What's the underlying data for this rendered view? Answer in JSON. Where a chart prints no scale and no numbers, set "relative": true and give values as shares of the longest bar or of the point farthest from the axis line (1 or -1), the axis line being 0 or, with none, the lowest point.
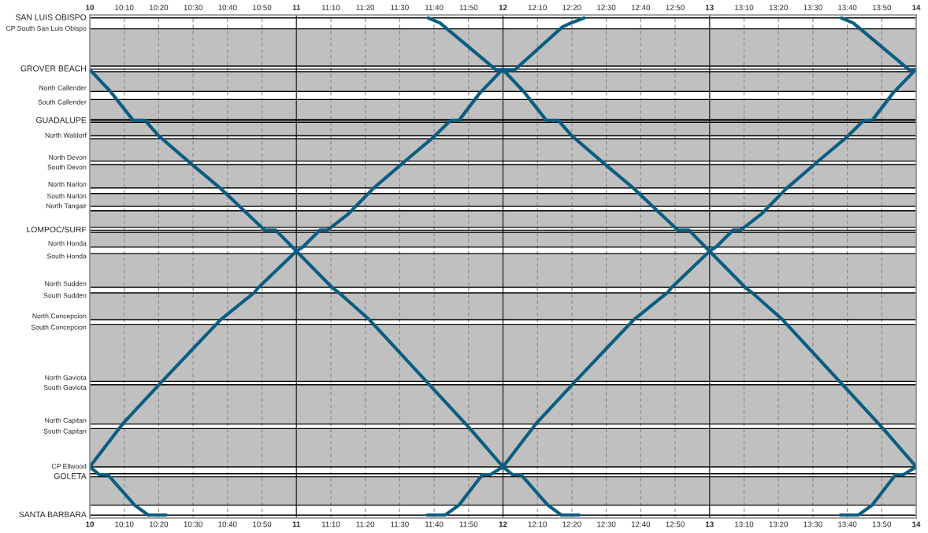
{
  "chart_data": {
    "type": "line",
    "line_style": "solid",
    "grid": "x",
    "relative": true,
    "xlim": [
      10,
      14
    ],
    "x2lim": [
      10,
      14
    ],
    "xticks": [
      10,
      {
        "value": 10.1667,
        "label": "10:10"
      },
      {
        "value": 10.3333,
        "label": "10:20"
      },
      {
        "value": 10.5,
        "label": "10:30"
      },
      {
        "value": 10.6667,
        "label": "10:40"
      },
      {
        "value": 10.8333,
        "label": "10:50"
      },
      11,
      {
        "value": 11.1667,
        "label": "11:10"
      },
      {
        "value": 11.3333,
        "label": "11:20"
      },
      {
        "value": 11.5,
        "label": "11:30"
      },
      {
        "value": 11.6667,
        "label": "11:40"
      },
      {
        "value": 11.8333,
        "label": "11:50"
      },
      12,
      {
        "value": 12.1667,
        "label": "12:10"
      },
      {
        "value": 12.3333,
        "label": "12:20"
      },
      {
        "value": 12.5,
        "label": "12:30"
      },
      {
        "value": 12.6667,
        "label": "12:40"
      },
      {
        "value": 12.8333,
        "label": "12:50"
      },
      13,
      {
        "value": 13.1667,
        "label": "13:10"
      },
      {
        "value": 13.3333,
        "label": "13:20"
      },
      {
        "value": 13.5,
        "label": "13:30"
      },
      {
        "value": 13.6667,
        "label": "13:40"
      },
      {
        "value": 13.8333,
        "label": "13:50"
      },
      14
    ],
    "x2ticks": [
      10,
      {
        "value": 10.1667,
        "label": "10:10"
      },
      {
        "value": 10.3333,
        "label": "10:20"
      },
      {
        "value": 10.5,
        "label": "10:30"
      },
      {
        "value": 10.6667,
        "label": "10:40"
      },
      {
        "value": 10.8333,
        "label": "10:50"
      },
      11,
      {
        "value": 11.1667,
        "label": "11:10"
      },
      {
        "value": 11.3333,
        "label": "11:20"
      },
      {
        "value": 11.5,
        "label": "11:30"
      },
      {
        "value": 11.6667,
        "label": "11:40"
      },
      {
        "value": 11.8333,
        "label": "11:50"
      },
      12,
      {
        "value": 12.1667,
        "label": "12:10"
      },
      {
        "value": 12.3333,
        "label": "12:20"
      },
      {
        "value": 12.5,
        "label": "12:30"
      },
      {
        "value": 12.6667,
        "label": "12:40"
      },
      {
        "value": 12.8333,
        "label": "12:50"
      },
      13,
      {
        "value": 13.1667,
        "label": "13:10"
      },
      {
        "value": 13.3333,
        "label": "13:20"
      },
      {
        "value": 13.5,
        "label": "13:30"
      },
      {
        "value": 13.6667,
        "label": "13:40"
      },
      {
        "value": 13.8333,
        "label": "13:50"
      },
      14
    ],
    "bands": [
      {
        "axis": "y",
        "from": 0.978,
        "to": 0.903,
        "color": "#c0c0c0"
      },
      {
        "axis": "y",
        "from": 0.892,
        "to": 0.852,
        "color": "#c0c0c0"
      },
      {
        "axis": "y",
        "from": 0.836,
        "to": 0.796,
        "color": "#c0c0c0"
      },
      {
        "axis": "y",
        "from": 0.79,
        "to": 0.763,
        "color": "#c0c0c0"
      },
      {
        "axis": "y",
        "from": 0.757,
        "to": 0.712,
        "color": "#c0c0c0"
      },
      {
        "axis": "y",
        "from": 0.705,
        "to": 0.658,
        "color": "#c0c0c0"
      },
      {
        "axis": "y",
        "from": 0.647,
        "to": 0.621,
        "color": "#c0c0c0"
      },
      {
        "axis": "y",
        "from": 0.612,
        "to": 0.579,
        "color": "#c0c0c0"
      },
      {
        "axis": "y",
        "from": 0.569,
        "to": 0.539,
        "color": "#c0c0c0"
      },
      {
        "axis": "y",
        "from": 0.526,
        "to": 0.458,
        "color": "#c0c0c0"
      },
      {
        "axis": "y",
        "from": 0.447,
        "to": 0.393,
        "color": "#c0c0c0"
      },
      {
        "axis": "y",
        "from": 0.383,
        "to": 0.269,
        "color": "#c0c0c0"
      },
      {
        "axis": "y",
        "from": 0.262,
        "to": 0.183,
        "color": "#c0c0c0"
      },
      {
        "axis": "y",
        "from": 0.174,
        "to": 0.097,
        "color": "#c0c0c0"
      },
      {
        "axis": "y",
        "from": 0.077,
        "to": 0.02,
        "color": "#c0c0c0"
      }
    ],
    "ref_lines": [
      {
        "axis": "y",
        "value": 1.0,
        "color": "#000000",
        "label": "SAN LUIS OBISPO"
      },
      {
        "axis": "y",
        "value": 0.978,
        "color": "#000000",
        "label": "CP South San Luis Obispo"
      },
      {
        "axis": "y",
        "value": 0.903,
        "color": "#000000"
      },
      {
        "axis": "y",
        "value": 0.897,
        "color": "#000000",
        "label": "GROVER BEACH"
      },
      {
        "axis": "y",
        "value": 0.892,
        "color": "#000000"
      },
      {
        "axis": "y",
        "value": 0.852,
        "color": "#000000",
        "label": "North Callender"
      },
      {
        "axis": "y",
        "value": 0.836,
        "color": "#000000",
        "label": "South Callender"
      },
      {
        "axis": "y",
        "value": 0.796,
        "color": "#000000"
      },
      {
        "axis": "y",
        "value": 0.793,
        "color": "#000000",
        "label": "GUADALUPE"
      },
      {
        "axis": "y",
        "value": 0.79,
        "color": "#000000"
      },
      {
        "axis": "y",
        "value": 0.763,
        "color": "#000000",
        "label": "North Waldorf"
      },
      {
        "axis": "y",
        "value": 0.757,
        "color": "#000000"
      },
      {
        "axis": "y",
        "value": 0.712,
        "color": "#000000",
        "label": "North Devon"
      },
      {
        "axis": "y",
        "value": 0.705,
        "color": "#000000",
        "label": "South Devon"
      },
      {
        "axis": "y",
        "value": 0.658,
        "color": "#000000",
        "label": "North Narlon"
      },
      {
        "axis": "y",
        "value": 0.647,
        "color": "#000000",
        "label": "South Narlon"
      },
      {
        "axis": "y",
        "value": 0.621,
        "color": "#000000",
        "label": "North Tangair"
      },
      {
        "axis": "y",
        "value": 0.612,
        "color": "#000000"
      },
      {
        "axis": "y",
        "value": 0.579,
        "color": "#000000"
      },
      {
        "axis": "y",
        "value": 0.573,
        "color": "#000000",
        "label": "LOMPOC/SURF"
      },
      {
        "axis": "y",
        "value": 0.569,
        "color": "#000000"
      },
      {
        "axis": "y",
        "value": 0.539,
        "color": "#000000",
        "label": "North Honda"
      },
      {
        "axis": "y",
        "value": 0.526,
        "color": "#000000",
        "label": "South Honda"
      },
      {
        "axis": "y",
        "value": 0.458,
        "color": "#000000",
        "label": "North Sudden"
      },
      {
        "axis": "y",
        "value": 0.447,
        "color": "#000000",
        "label": "South Sudden"
      },
      {
        "axis": "y",
        "value": 0.393,
        "color": "#000000",
        "label": "North Concepcion"
      },
      {
        "axis": "y",
        "value": 0.383,
        "color": "#000000",
        "label": "South Concepcion"
      },
      {
        "axis": "y",
        "value": 0.269,
        "color": "#000000",
        "label": "North Gaviota"
      },
      {
        "axis": "y",
        "value": 0.262,
        "color": "#000000",
        "label": "South Gaviota"
      },
      {
        "axis": "y",
        "value": 0.183,
        "color": "#000000",
        "label": "North Capitan"
      },
      {
        "axis": "y",
        "value": 0.174,
        "color": "#000000",
        "label": "South Capitan"
      },
      {
        "axis": "y",
        "value": 0.097,
        "color": "#000000",
        "label": "CP Ellwood"
      },
      {
        "axis": "y",
        "value": 0.083,
        "color": "#000000"
      },
      {
        "axis": "y",
        "value": 0.077,
        "color": "#000000",
        "label": "GOLETA"
      },
      {
        "axis": "y",
        "value": 0.02,
        "color": "#000000"
      },
      {
        "axis": "y",
        "value": 0.0,
        "color": "#000000",
        "label": "SANTA BARBARA"
      }
    ],
    "series": [
      {
        "color": "#0b5d82",
        "x": [
          10.0,
          10.047,
          10.088,
          10.217,
          10.283,
          10.37
        ],
        "values": [
          0.097,
          0.081,
          0.081,
          0.02,
          0.0,
          0.0
        ]
      },
      {
        "color": "#0b5d82",
        "x": [
          10.0,
          10.1,
          10.21,
          10.267,
          10.333,
          10.49,
          10.633,
          10.847,
          10.9,
          10.997,
          11.177,
          11.207,
          11.353,
          11.84,
          12.0,
          12.047,
          12.088,
          12.217,
          12.283,
          12.37
        ],
        "values": [
          0.896,
          0.852,
          0.794,
          0.794,
          0.763,
          0.707,
          0.657,
          0.573,
          0.573,
          0.532,
          0.456,
          0.447,
          0.393,
          0.174,
          0.097,
          0.081,
          0.081,
          0.02,
          0.0,
          0.0
        ]
      },
      {
        "color": "#0b5d82",
        "x": [
          11.638,
          11.695,
          11.965,
          12.0,
          12.1,
          12.21,
          12.267,
          12.333,
          12.49,
          12.633,
          12.847,
          12.9,
          12.997,
          13.177,
          13.207,
          13.353,
          13.84,
          14.0
        ],
        "values": [
          1.0,
          0.99,
          0.896,
          0.896,
          0.852,
          0.794,
          0.794,
          0.763,
          0.707,
          0.657,
          0.573,
          0.573,
          0.532,
          0.456,
          0.447,
          0.393,
          0.174,
          0.097
        ]
      },
      {
        "color": "#0b5d82",
        "x": [
          13.638,
          13.695,
          13.965,
          14.0
        ],
        "values": [
          1.0,
          0.99,
          0.896,
          0.896
        ]
      },
      {
        "color": "#0b5d82",
        "x": [
          10.0,
          10.158,
          10.35,
          10.633,
          10.795,
          10.817,
          11.0,
          11.033,
          11.113,
          11.15,
          11.252,
          11.372,
          11.54,
          11.663,
          11.747,
          11.787,
          11.888,
          11.997,
          12.058,
          12.288,
          12.33,
          12.393
        ],
        "values": [
          0.097,
          0.183,
          0.269,
          0.393,
          0.447,
          0.458,
          0.531,
          0.54,
          0.573,
          0.573,
          0.606,
          0.657,
          0.717,
          0.76,
          0.794,
          0.794,
          0.849,
          0.896,
          0.896,
          0.982,
          0.99,
          1.0
        ]
      },
      {
        "color": "#0b5d82",
        "x": [
          11.633,
          11.72,
          11.787,
          11.9,
          11.938,
          12.0,
          12.158,
          12.35,
          12.633,
          12.795,
          12.817,
          13.0,
          13.033,
          13.113,
          13.15,
          13.252,
          13.372,
          13.54,
          13.663,
          13.747,
          13.787,
          13.888,
          13.997
        ],
        "values": [
          0.0,
          0.0,
          0.02,
          0.081,
          0.081,
          0.097,
          0.183,
          0.269,
          0.393,
          0.447,
          0.458,
          0.531,
          0.54,
          0.573,
          0.573,
          0.606,
          0.657,
          0.717,
          0.76,
          0.794,
          0.794,
          0.849,
          0.896
        ]
      },
      {
        "color": "#0b5d82",
        "x": [
          13.633,
          13.72,
          13.787,
          13.9,
          13.938,
          14.0
        ],
        "values": [
          0.0,
          0.0,
          0.02,
          0.081,
          0.081,
          0.097
        ]
      }
    ]
  }
}
